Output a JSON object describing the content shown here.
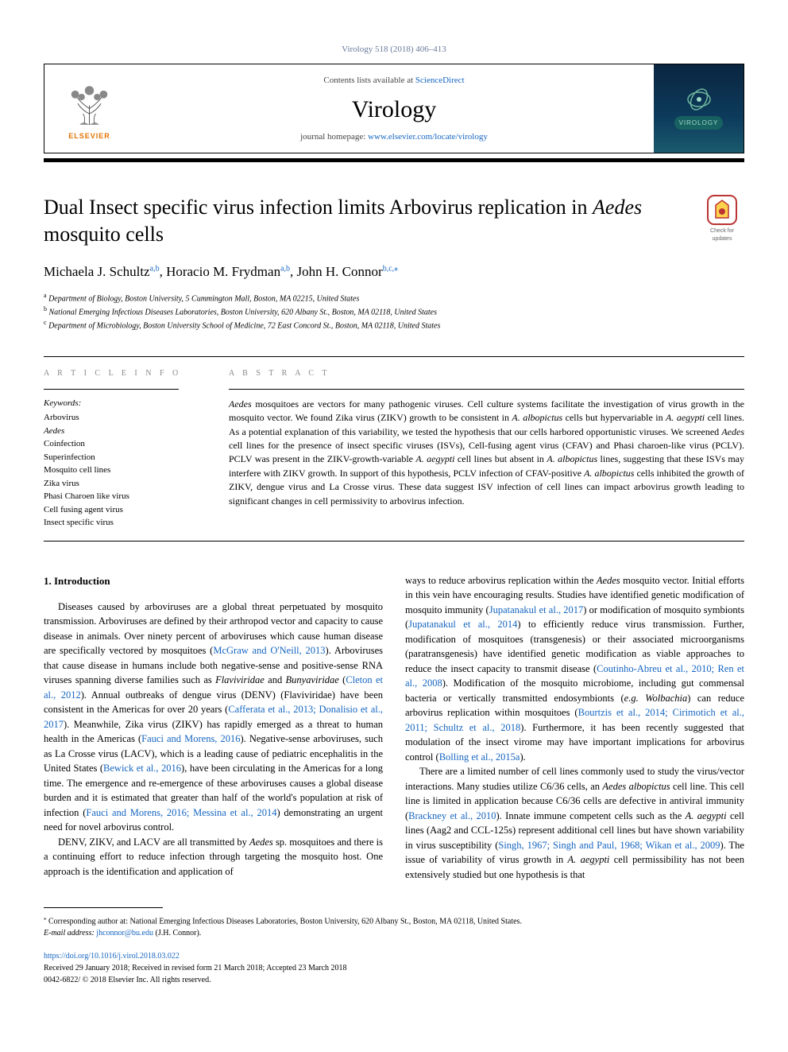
{
  "topCitation": "Virology 518 (2018) 406–413",
  "header": {
    "contentsPrefix": "Contents lists available at ",
    "contentsLink": "ScienceDirect",
    "journalName": "Virology",
    "homepagePrefix": "journal homepage: ",
    "homepageLink": "www.elsevier.com/locate/virology",
    "publisherLabel": "ELSEVIER",
    "thumbLabel": "VIROLOGY"
  },
  "checkUpdatesLabel": "Check for updates",
  "title": {
    "prefix": "Dual Insect specific virus infection limits Arbovirus replication in ",
    "italic": "Aedes",
    "suffix": " mosquito cells"
  },
  "authors": [
    {
      "name": "Michaela J. Schultz",
      "sup": "a,b"
    },
    {
      "name": "Horacio M. Frydman",
      "sup": "a,b"
    },
    {
      "name": "John H. Connor",
      "sup": "b,c,",
      "corr": true
    }
  ],
  "affiliations": [
    {
      "sup": "a",
      "text": "Department of Biology, Boston University, 5 Cummington Mall, Boston, MA 02215, United States"
    },
    {
      "sup": "b",
      "text": "National Emerging Infectious Diseases Laboratories, Boston University, 620 Albany St., Boston, MA 02118, United States"
    },
    {
      "sup": "c",
      "text": "Department of Microbiology, Boston University School of Medicine, 72 East Concord St., Boston, MA 02118, United States"
    }
  ],
  "infoHeader": "A R T I C L E  I N F O",
  "keywordsLabel": "Keywords:",
  "keywords": [
    "Arbovirus",
    "Aedes",
    "Coinfection",
    "Superinfection",
    "Mosquito cell lines",
    "Zika virus",
    "Phasi Charoen like virus",
    "Cell fusing agent virus",
    "Insect specific virus"
  ],
  "abstractHeader": "A B S T R A C T",
  "abstract": {
    "parts": [
      {
        "t": "italic",
        "v": "Aedes"
      },
      {
        "t": "text",
        "v": " mosquitoes are vectors for many pathogenic viruses. Cell culture systems facilitate the investigation of virus growth in the mosquito vector. We found Zika virus (ZIKV) growth to be consistent in "
      },
      {
        "t": "italic",
        "v": "A. albopictus"
      },
      {
        "t": "text",
        "v": " cells but hypervariable in "
      },
      {
        "t": "italic",
        "v": "A. aegypti"
      },
      {
        "t": "text",
        "v": " cell lines. As a potential explanation of this variability, we tested the hypothesis that our cells harbored opportunistic viruses. We screened "
      },
      {
        "t": "italic",
        "v": "Aedes"
      },
      {
        "t": "text",
        "v": " cell lines for the presence of insect specific viruses (ISVs), Cell-fusing agent virus (CFAV) and Phasi charoen-like virus (PCLV). PCLV was present in the ZIKV-growth-variable "
      },
      {
        "t": "italic",
        "v": "A. aegypti"
      },
      {
        "t": "text",
        "v": " cell lines but absent in "
      },
      {
        "t": "italic",
        "v": "A. albopictus"
      },
      {
        "t": "text",
        "v": " lines, suggesting that these ISVs may interfere with ZIKV growth. In support of this hypothesis, PCLV infection of CFAV-positive "
      },
      {
        "t": "italic",
        "v": "A. albopictus"
      },
      {
        "t": "text",
        "v": " cells inhibited the growth of ZIKV, dengue virus and La Crosse virus. These data suggest ISV infection of cell lines can impact arbovirus growth leading to significant changes in cell permissivity to arbovirus infection."
      }
    ]
  },
  "introHeading": "1. Introduction",
  "colLeft": {
    "p1": [
      {
        "t": "text",
        "v": "Diseases caused by arboviruses are a global threat perpetuated by mosquito transmission. Arboviruses are defined by their arthropod vector and capacity to cause disease in animals. Over ninety percent of arboviruses which cause human disease are specifically vectored by mosquitoes ("
      },
      {
        "t": "link",
        "v": "McGraw and O'Neill, 2013"
      },
      {
        "t": "text",
        "v": "). Arboviruses that cause disease in humans include both negative-sense and positive-sense RNA viruses spanning diverse families such as "
      },
      {
        "t": "italic",
        "v": "Flaviviridae"
      },
      {
        "t": "text",
        "v": " and "
      },
      {
        "t": "italic",
        "v": "Bunyaviridae"
      },
      {
        "t": "text",
        "v": " ("
      },
      {
        "t": "link",
        "v": "Cleton et al., 2012"
      },
      {
        "t": "text",
        "v": "). Annual outbreaks of dengue virus (DENV) (Flaviviridae) have been consistent in the Americas for over 20 years ("
      },
      {
        "t": "link",
        "v": "Cafferata et al., 2013; Donalisio et al., 2017"
      },
      {
        "t": "text",
        "v": "). Meanwhile, Zika virus (ZIKV) has rapidly emerged as a threat to human health in the Americas ("
      },
      {
        "t": "link",
        "v": "Fauci and Morens, 2016"
      },
      {
        "t": "text",
        "v": "). Negative-sense arboviruses, such as La Crosse virus (LACV), which is a leading cause of pediatric encephalitis in the United States ("
      },
      {
        "t": "link",
        "v": "Bewick et al., 2016"
      },
      {
        "t": "text",
        "v": "), have been circulating in the Americas for a long time. The emergence and re-emergence of these arboviruses causes a global disease burden and it is estimated that greater than half of the world's population at risk of infection ("
      },
      {
        "t": "link",
        "v": "Fauci and Morens, 2016; Messina et al., 2014"
      },
      {
        "t": "text",
        "v": ") demonstrating an urgent need for novel arbovirus control."
      }
    ],
    "p2": [
      {
        "t": "text",
        "v": "DENV, ZIKV, and LACV are all transmitted by "
      },
      {
        "t": "italic",
        "v": "Aedes"
      },
      {
        "t": "text",
        "v": " sp. mosquitoes and there is a continuing effort to reduce infection through targeting the mosquito host. One approach is the identification and application of"
      }
    ]
  },
  "colRight": {
    "p1": [
      {
        "t": "text",
        "v": "ways to reduce arbovirus replication within the "
      },
      {
        "t": "italic",
        "v": "Aedes"
      },
      {
        "t": "text",
        "v": " mosquito vector. Initial efforts in this vein have encouraging results. Studies have identified genetic modification of mosquito immunity ("
      },
      {
        "t": "link",
        "v": "Jupatanakul et al., 2017"
      },
      {
        "t": "text",
        "v": ") or modification of mosquito symbionts ("
      },
      {
        "t": "link",
        "v": "Jupatanakul et al., 2014"
      },
      {
        "t": "text",
        "v": ") to efficiently reduce virus transmission. Further, modification of mosquitoes (transgenesis) or their associated microorganisms (paratransgenesis) have identified genetic modification as viable approaches to reduce the insect capacity to transmit disease ("
      },
      {
        "t": "link",
        "v": "Coutinho-Abreu et al., 2010; Ren et al., 2008"
      },
      {
        "t": "text",
        "v": "). Modification of the mosquito microbiome, including gut commensal bacteria or vertically transmitted endosymbionts ("
      },
      {
        "t": "italic",
        "v": "e.g. Wolbachia"
      },
      {
        "t": "text",
        "v": ") can reduce arbovirus replication within mosquitoes ("
      },
      {
        "t": "link",
        "v": "Bourtzis et al., 2014; Cirimotich et al., 2011; Schultz et al., 2018"
      },
      {
        "t": "text",
        "v": "). Furthermore, it has been recently suggested that modulation of the insect virome may have important implications for arbovirus control ("
      },
      {
        "t": "link",
        "v": "Bolling et al., 2015a"
      },
      {
        "t": "text",
        "v": ")."
      }
    ],
    "p2": [
      {
        "t": "text",
        "v": "There are a limited number of cell lines commonly used to study the virus/vector interactions. Many studies utilize C6/36 cells, an "
      },
      {
        "t": "italic",
        "v": "Aedes albopictus"
      },
      {
        "t": "text",
        "v": " cell line. This cell line is limited in application because C6/36 cells are defective in antiviral immunity ("
      },
      {
        "t": "link",
        "v": "Brackney et al., 2010"
      },
      {
        "t": "text",
        "v": "). Innate immune competent cells such as the "
      },
      {
        "t": "italic",
        "v": "A. aegypti"
      },
      {
        "t": "text",
        "v": " cell lines (Aag2 and CCL-125s) represent additional cell lines but have shown variability in virus susceptibility ("
      },
      {
        "t": "link",
        "v": "Singh, 1967; Singh and Paul, 1968; Wikan et al., 2009"
      },
      {
        "t": "text",
        "v": "). The issue of variability of virus growth in "
      },
      {
        "t": "italic",
        "v": "A. aegypti"
      },
      {
        "t": "text",
        "v": " cell permissibility has not been extensively studied but one hypothesis is that"
      }
    ]
  },
  "footnote": {
    "corr": "Corresponding author at: National Emerging Infectious Diseases Laboratories, Boston University, 620 Albany St., Boston, MA 02118, United States.",
    "emailLabel": "E-mail address:",
    "email": "jhconnor@bu.edu",
    "emailPerson": "(J.H. Connor)."
  },
  "doi": {
    "link": "https://doi.org/10.1016/j.virol.2018.03.022",
    "received": "Received 29 January 2018; Received in revised form 21 March 2018; Accepted 23 March 2018",
    "copyright": "0042-6822/ © 2018 Elsevier Inc. All rights reserved."
  },
  "colors": {
    "link": "#1565c0",
    "elsevierOrange": "#e57200",
    "grayHeader": "#888888"
  }
}
